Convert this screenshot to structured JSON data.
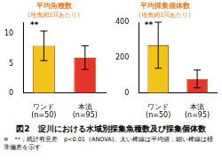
{
  "chart_data": [
    {
      "type": "bar",
      "title": "平均魚種数",
      "subtitle": "(地曳網1回あたり)",
      "categories": [
        "ワンド",
        "本流"
      ],
      "sample_sizes": [
        "(n=50)",
        "(n=95)"
      ],
      "values": [
        8,
        6
      ],
      "errors": [
        2.5,
        2
      ],
      "colors": [
        "#f2c417",
        "#e8352b"
      ],
      "ylim": [
        0,
        12
      ],
      "yticks": [
        0,
        5,
        10
      ],
      "grid": false,
      "annotations": [
        {
          "category": "ワンド",
          "text": "**"
        }
      ]
    },
    {
      "type": "bar",
      "title": "平均採集個体数",
      "subtitle": "(地曳網1回あたり)",
      "categories": [
        "ワンド",
        "本流"
      ],
      "sample_sizes": [
        "(n=50)",
        "(n=95)"
      ],
      "values": [
        270,
        80
      ],
      "errors": [
        130,
        50
      ],
      "colors": [
        "#f2c417",
        "#e8352b"
      ],
      "ylim": [
        0,
        400
      ],
      "yticks": [
        0,
        200,
        400
      ],
      "grid": false,
      "annotations": [
        {
          "category": "ワンド",
          "text": "**"
        }
      ]
    }
  ],
  "caption": "図2　淀川における水域別採集魚種数及び採集個体数",
  "note": "※　**；統計有意差　p<0.01（ANOVA)。太い棒線は平均値，細い棒線は標準偏差を示す"
}
